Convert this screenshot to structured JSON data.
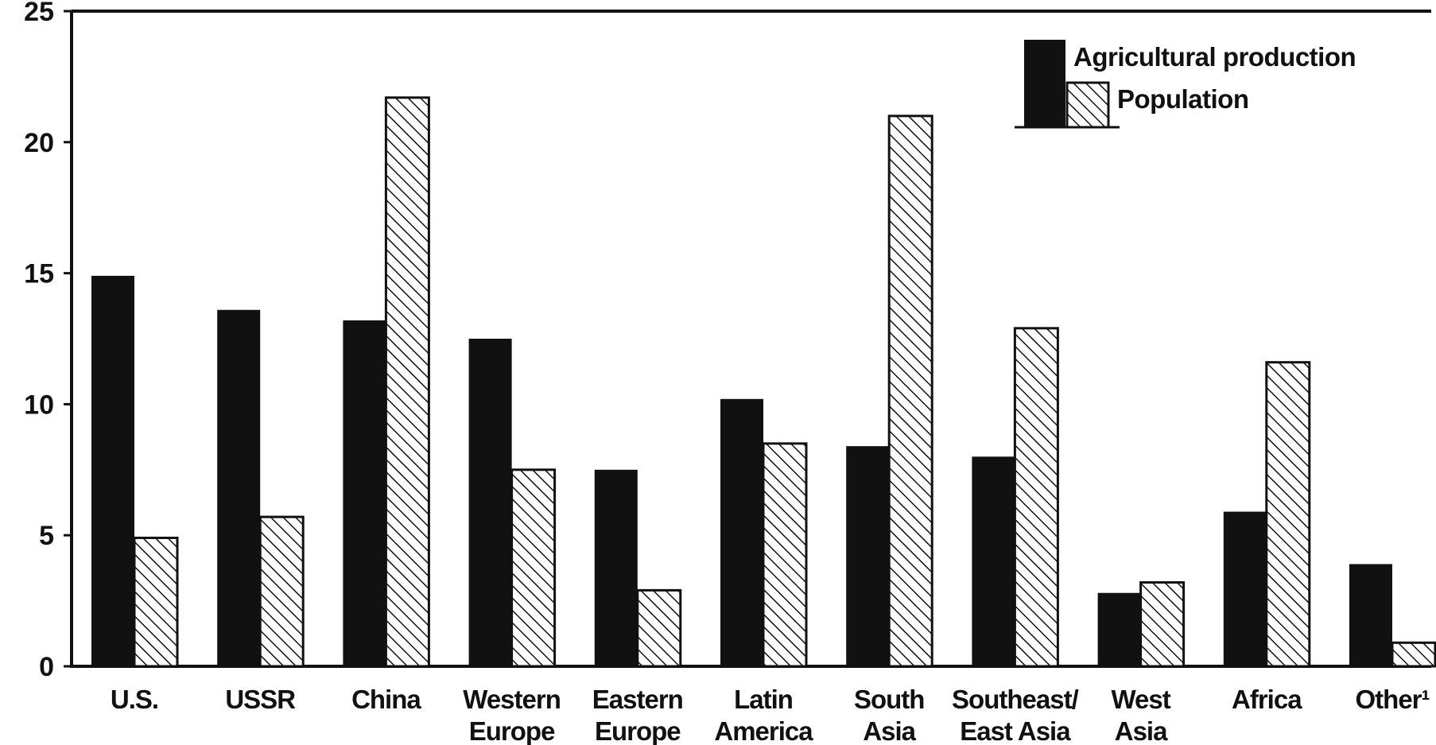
{
  "chart_data": {
    "type": "bar",
    "title": "",
    "xlabel": "",
    "ylabel": "",
    "ylim": [
      0,
      25
    ],
    "yticks": [
      "0",
      "5",
      "10",
      "15",
      "20",
      "25"
    ],
    "categories": [
      [
        "U.S."
      ],
      [
        "USSR"
      ],
      [
        "China"
      ],
      [
        "Western",
        "Europe"
      ],
      [
        "Eastern",
        "Europe"
      ],
      [
        "Latin",
        "America"
      ],
      [
        "South",
        "Asia"
      ],
      [
        "Southeast/",
        "East Asia"
      ],
      [
        "West",
        "Asia"
      ],
      [
        "Africa"
      ],
      [
        "Other¹"
      ]
    ],
    "series": [
      {
        "name": "Agricultural production",
        "style": "solid",
        "values": [
          14.9,
          13.6,
          13.2,
          12.5,
          7.5,
          10.2,
          8.4,
          8.0,
          2.8,
          5.9,
          3.9
        ]
      },
      {
        "name": "Population",
        "style": "hatched",
        "values": [
          4.9,
          5.7,
          21.7,
          7.5,
          2.9,
          8.5,
          21.0,
          12.9,
          3.2,
          11.6,
          0.9
        ]
      }
    ],
    "legend": {
      "position": "top-right"
    },
    "colors": {
      "solid": "#111111",
      "hatch": "#111111",
      "background": "#ffffff"
    }
  }
}
